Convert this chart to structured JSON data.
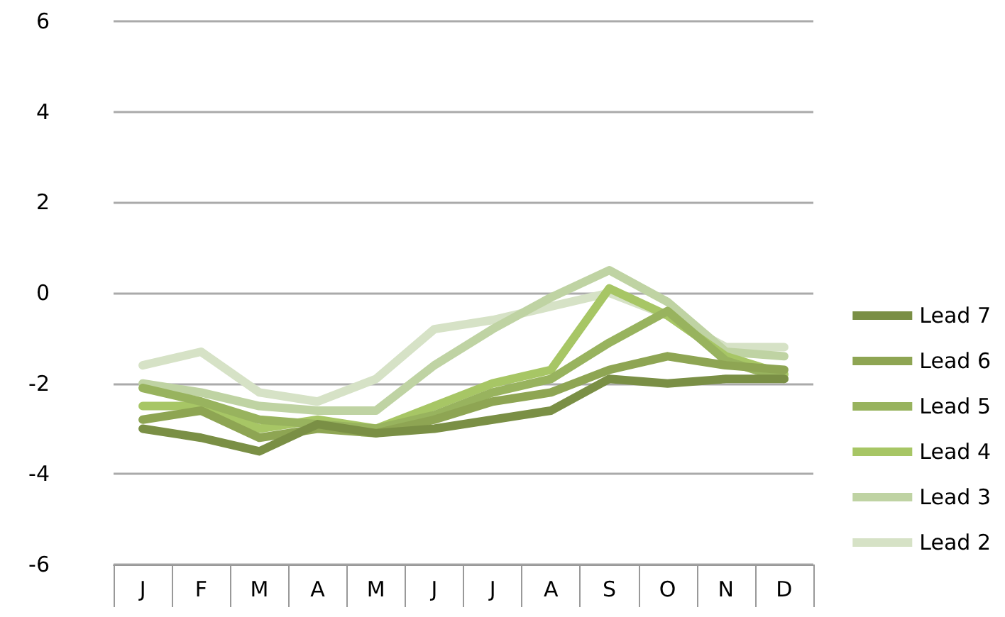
{
  "chart_data": {
    "type": "line",
    "categories": [
      "J",
      "F",
      "M",
      "A",
      "M",
      "J",
      "J",
      "A",
      "S",
      "O",
      "N",
      "D"
    ],
    "ylim": [
      -6,
      6
    ],
    "yticks": [
      -6,
      -4,
      -2,
      0,
      2,
      4,
      6
    ],
    "grid": "y",
    "legend": "right",
    "marker": "none",
    "line_style": "solid",
    "series": [
      {
        "name": "Lead 7",
        "color": "#7a8f45",
        "values": [
          -3.0,
          -3.2,
          -3.5,
          -2.9,
          -3.1,
          -3.0,
          -2.8,
          -2.6,
          -1.9,
          -2.0,
          -1.9,
          -1.9
        ]
      },
      {
        "name": "Lead 6",
        "color": "#8ea553",
        "values": [
          -2.8,
          -2.6,
          -3.2,
          -3.0,
          -3.1,
          -2.8,
          -2.4,
          -2.2,
          -1.7,
          -1.4,
          -1.6,
          -1.7
        ]
      },
      {
        "name": "Lead 5",
        "color": "#98b35e",
        "values": [
          -2.1,
          -2.4,
          -2.8,
          -2.9,
          -3.0,
          -2.7,
          -2.2,
          -1.9,
          -1.1,
          -0.4,
          -1.5,
          -1.9
        ]
      },
      {
        "name": "Lead 4",
        "color": "#a7c665",
        "values": [
          -2.5,
          -2.5,
          -3.0,
          -2.8,
          -3.0,
          -2.5,
          -2.0,
          -1.7,
          0.1,
          -0.5,
          -1.4,
          -1.8
        ]
      },
      {
        "name": "Lead 3",
        "color": "#bfd3a3",
        "values": [
          -2.0,
          -2.2,
          -2.5,
          -2.6,
          -2.6,
          -1.6,
          -0.8,
          -0.1,
          0.5,
          -0.2,
          -1.3,
          -1.4
        ]
      },
      {
        "name": "Lead 2",
        "color": "#d6e2c6",
        "values": [
          -1.6,
          -1.3,
          -2.2,
          -2.4,
          -1.9,
          -0.8,
          -0.6,
          -0.3,
          0.0,
          -0.5,
          -1.2,
          -1.2
        ]
      }
    ]
  }
}
